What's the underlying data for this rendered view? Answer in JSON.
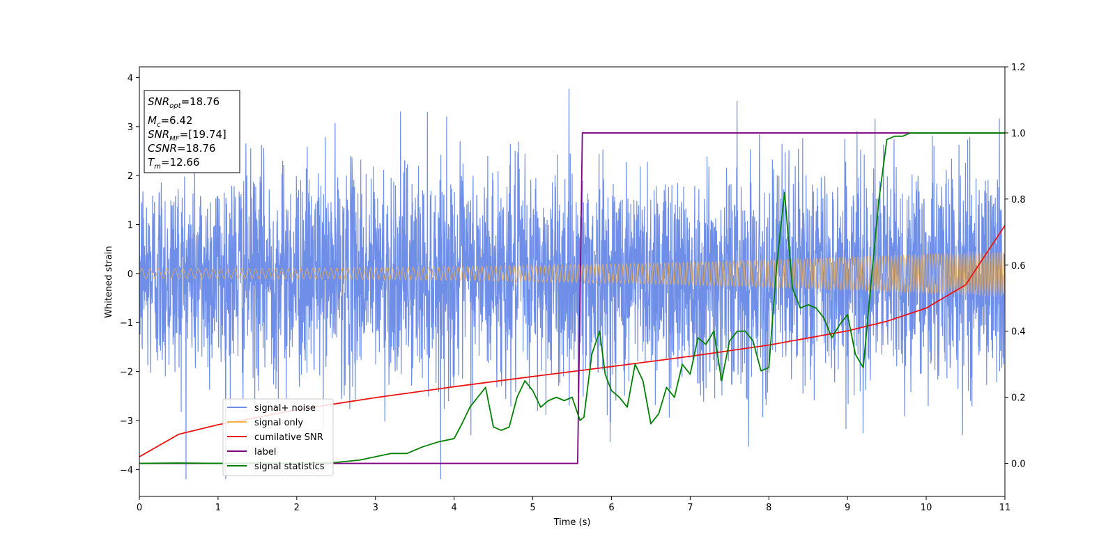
{
  "chart_data": {
    "type": "line",
    "xlabel": "Time (s)",
    "ylabel": "Whitened strain",
    "xlim": [
      0,
      11
    ],
    "ylim": [
      -4.55,
      4.22
    ],
    "y2lim": [
      -0.1,
      1.2
    ],
    "x_ticks": [
      "0",
      "1",
      "2",
      "3",
      "4",
      "5",
      "6",
      "7",
      "8",
      "9",
      "10",
      "11"
    ],
    "y_ticks": [
      "−4",
      "−3",
      "−2",
      "−1",
      "0",
      "1",
      "2",
      "3",
      "4"
    ],
    "y2_ticks": [
      "0.0",
      "0.2",
      "0.4",
      "0.6",
      "0.8",
      "1.0",
      "1.2"
    ],
    "legend_position": "lower-left",
    "colors": {
      "noise": "#6f8ee8",
      "signal": "#f5b14a",
      "csnr": "#ee1111",
      "label": "#800080",
      "stat": "#008000"
    },
    "series": [
      {
        "name": "signal+ noise",
        "axis": "left",
        "description_values": "dense gaussian noise, std ~1.1, range about -4.2 to 3.85",
        "noise_std": 1.1
      },
      {
        "name": "signal only",
        "axis": "left",
        "amplitude_start": 0.1,
        "amplitude_end": 0.48
      },
      {
        "name": "cumilative SNR",
        "axis": "right",
        "x": [
          0,
          0.5,
          1,
          2,
          3,
          4,
          5,
          6,
          7,
          8,
          9,
          9.5,
          10,
          10.5,
          11
        ],
        "values": [
          0.02,
          0.088,
          0.117,
          0.162,
          0.199,
          0.232,
          0.263,
          0.293,
          0.324,
          0.358,
          0.401,
          0.43,
          0.47,
          0.54,
          0.72
        ]
      },
      {
        "name": "label",
        "axis": "right",
        "x": [
          0,
          5.57,
          5.63,
          11
        ],
        "values": [
          0,
          0,
          1,
          1
        ]
      },
      {
        "name": "signal statistics",
        "axis": "right",
        "x": [
          0,
          0.5,
          1,
          1.5,
          2,
          2.5,
          2.8,
          3,
          3.2,
          3.4,
          3.6,
          3.8,
          4,
          4.1,
          4.2,
          4.3,
          4.4,
          4.5,
          4.6,
          4.7,
          4.8,
          4.9,
          5,
          5.1,
          5.2,
          5.3,
          5.4,
          5.5,
          5.6,
          5.65,
          5.75,
          5.85,
          5.92,
          6,
          6.1,
          6.2,
          6.3,
          6.4,
          6.5,
          6.6,
          6.7,
          6.8,
          6.9,
          7.0,
          7.1,
          7.2,
          7.3,
          7.4,
          7.5,
          7.6,
          7.7,
          7.8,
          7.9,
          8.0,
          8.1,
          8.2,
          8.3,
          8.35,
          8.4,
          8.5,
          8.6,
          8.7,
          8.8,
          8.9,
          9.0,
          9.1,
          9.2,
          9.3,
          9.4,
          9.5,
          9.6,
          9.7,
          9.8,
          10,
          10.5,
          11
        ],
        "values": [
          0.0,
          0.001,
          0.0,
          0.001,
          0.0,
          0.003,
          0.01,
          0.02,
          0.03,
          0.03,
          0.05,
          0.065,
          0.075,
          0.12,
          0.17,
          0.2,
          0.23,
          0.11,
          0.1,
          0.11,
          0.2,
          0.25,
          0.22,
          0.17,
          0.19,
          0.2,
          0.19,
          0.2,
          0.13,
          0.14,
          0.33,
          0.4,
          0.27,
          0.22,
          0.2,
          0.17,
          0.3,
          0.25,
          0.12,
          0.15,
          0.23,
          0.2,
          0.3,
          0.27,
          0.38,
          0.36,
          0.4,
          0.25,
          0.37,
          0.4,
          0.4,
          0.37,
          0.28,
          0.29,
          0.6,
          0.82,
          0.53,
          0.5,
          0.47,
          0.48,
          0.47,
          0.44,
          0.38,
          0.42,
          0.45,
          0.33,
          0.29,
          0.55,
          0.8,
          0.98,
          0.99,
          0.99,
          1.0,
          1.0,
          1.0,
          1.0
        ]
      }
    ],
    "legend": [
      "signal+ noise",
      "signal only",
      "cumilative SNR",
      "label",
      "signal statistics"
    ],
    "annotation": {
      "snr_opt": {
        "base": "SNR",
        "sub": "opt",
        "value": "=18.76"
      },
      "mc": {
        "base": "M",
        "sub": "c",
        "value": "=6.42"
      },
      "snr_mf": {
        "base": "SNR",
        "sub": "MF",
        "value": "=[19.74]"
      },
      "csnr": {
        "base": "CSNR",
        "value": "=18.76"
      },
      "tm": {
        "base": "T",
        "sub": "m",
        "value": "=12.66"
      }
    }
  }
}
